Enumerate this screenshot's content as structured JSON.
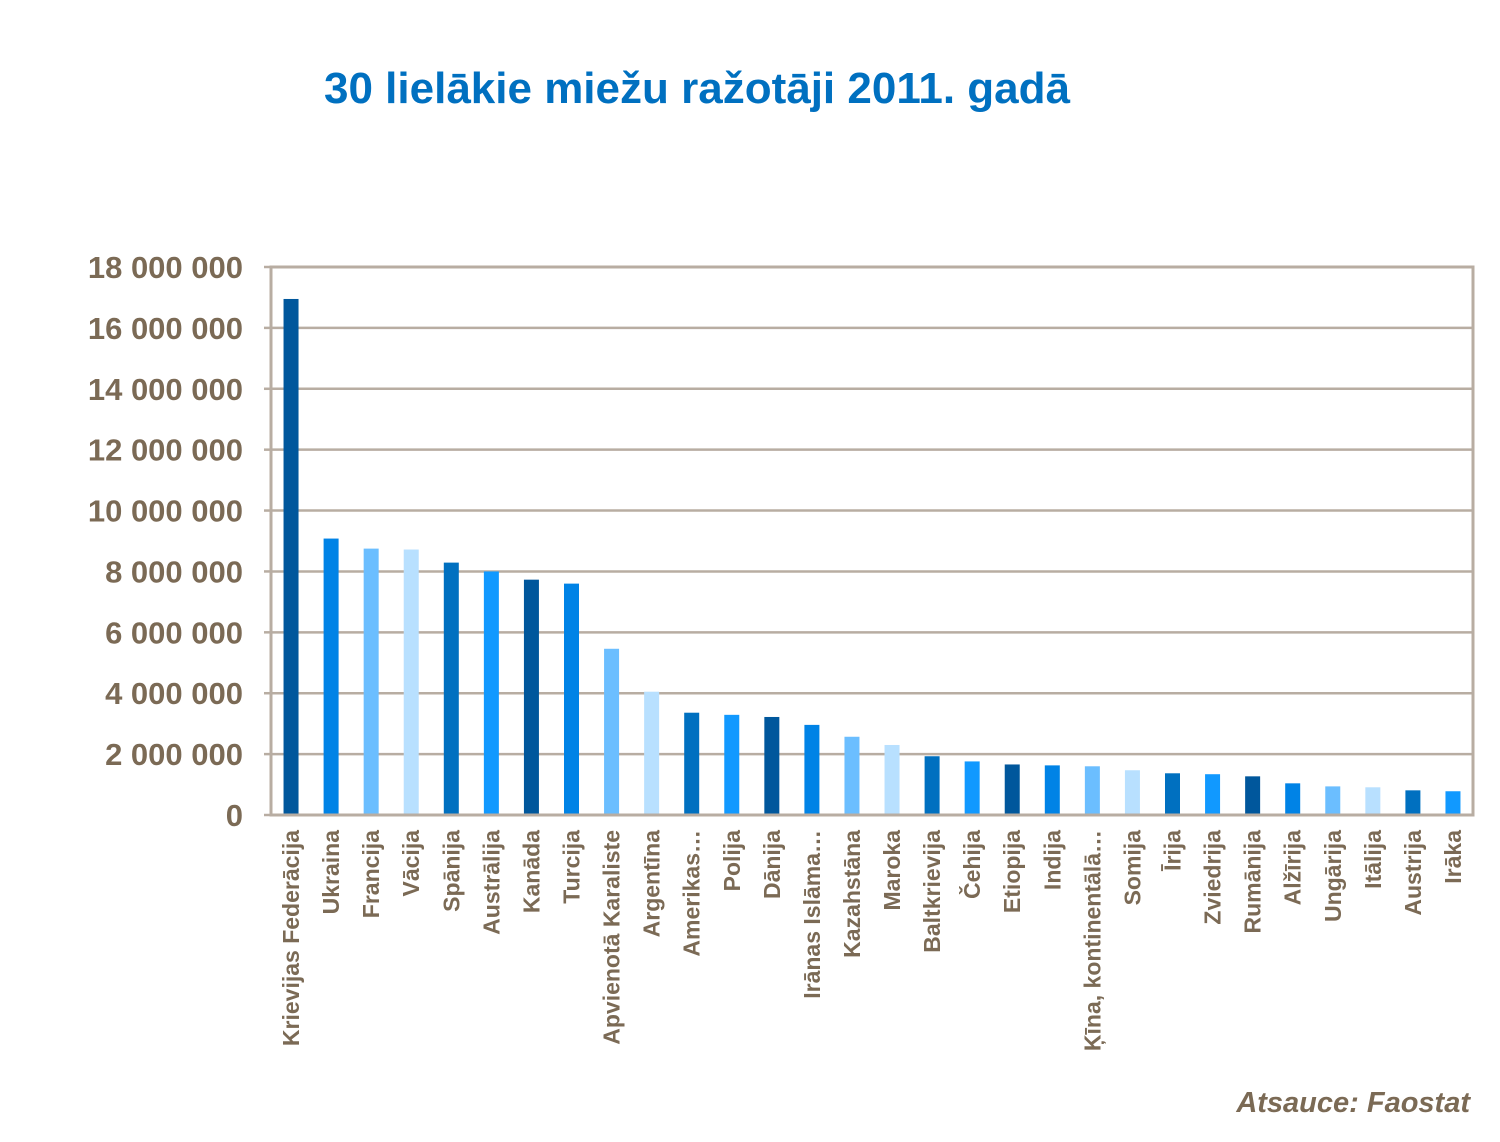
{
  "chart_data": {
    "type": "bar",
    "title": "30 lielākie miežu ražotāji 2011. gadā",
    "source": "Atsauce: Faostat",
    "xlabel": "",
    "ylabel": "",
    "ylim": [
      0,
      18000000
    ],
    "yticks": [
      0,
      2000000,
      4000000,
      6000000,
      8000000,
      10000000,
      12000000,
      14000000,
      16000000,
      18000000
    ],
    "ytick_labels": [
      "0",
      "2 000 000",
      "4 000 000",
      "6 000 000",
      "8 000 000",
      "10 000 000",
      "12 000 000",
      "14 000 000",
      "16 000 000",
      "18 000 000"
    ],
    "grid": true,
    "legend": "none",
    "categories": [
      "Krievijas Federācija",
      "Ukraina",
      "Francija",
      "Vācija",
      "Spānija",
      "Austrālija",
      "Kanāda",
      "Turcija",
      "Apvienotā Karaliste",
      "Argentīna",
      "Amerikas…",
      "Polija",
      "Dānija",
      "Irānas Islāma…",
      "Kazahstāna",
      "Maroka",
      "Baltkrievija",
      "Čehija",
      "Etiopija",
      "Indija",
      "Ķīna, kontinentālā…",
      "Somija",
      "Īrija",
      "Zviedrija",
      "Rumānija",
      "Alžīrija",
      "Ungārija",
      "Itālija",
      "Austrija",
      "Irāka"
    ],
    "values": [
      16950000,
      9080000,
      8750000,
      8720000,
      8290000,
      8000000,
      7730000,
      7600000,
      5460000,
      4050000,
      3360000,
      3290000,
      3220000,
      2960000,
      2570000,
      2300000,
      1930000,
      1760000,
      1660000,
      1630000,
      1600000,
      1470000,
      1370000,
      1340000,
      1270000,
      1040000,
      940000,
      910000,
      810000,
      780000
    ],
    "colors": [
      "#00579C",
      "#0083E6",
      "#6BBEFF",
      "#B8E0FF",
      "#0070C0",
      "#1199FF"
    ]
  }
}
